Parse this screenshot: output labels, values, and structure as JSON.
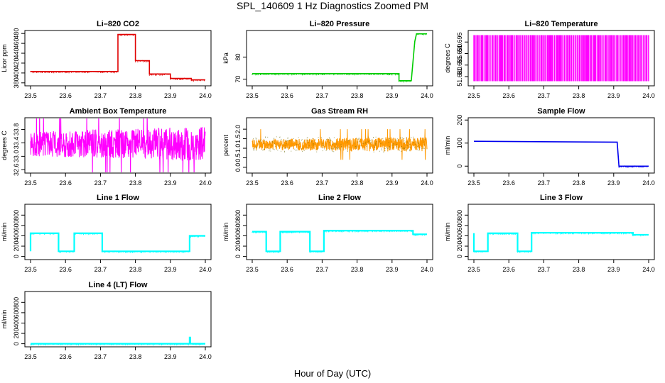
{
  "figure": {
    "title": "SPL_140609  1 Hz Diagnostics Zoomed PM",
    "xlabel": "Hour of Day (UTC)"
  },
  "chart_data": [
    {
      "type": "line",
      "title": "Li–820 CO2",
      "ylabel": "Licor ppm",
      "color": "#e00000",
      "xlim": [
        23.5,
        24.0
      ],
      "ylim": [
        374,
        486
      ],
      "xticks": [
        "23.5",
        "23.6",
        "23.7",
        "23.8",
        "23.9",
        "24.0"
      ],
      "yticks": [
        "380",
        "400",
        "420",
        "440",
        "460",
        "480"
      ],
      "x": [
        23.5,
        23.75,
        23.75,
        23.8,
        23.8,
        23.84,
        23.84,
        23.9,
        23.9,
        23.96,
        23.96,
        24.0
      ],
      "y": [
        403,
        403,
        478,
        478,
        425,
        425,
        398,
        398,
        389,
        389,
        386,
        386
      ]
    },
    {
      "type": "line",
      "title": "Li–820 Pressure",
      "ylabel": "kPa",
      "color": "#00cc00",
      "xlim": [
        23.5,
        24.0
      ],
      "ylim": [
        67,
        92
      ],
      "xticks": [
        "23.5",
        "23.6",
        "23.7",
        "23.8",
        "23.9",
        "24.0"
      ],
      "yticks": [
        "70",
        "80"
      ],
      "x": [
        23.5,
        23.92,
        23.92,
        23.955,
        23.965,
        23.97,
        24.0
      ],
      "y": [
        72.5,
        72.5,
        69.3,
        69.3,
        87,
        90.5,
        90.5
      ]
    },
    {
      "type": "line",
      "title": "Li–820 Temperature",
      "ylabel": "degrees C",
      "color": "#ff00ff",
      "xlim": [
        23.5,
        24.0
      ],
      "ylim": [
        51.676,
        51.7
      ],
      "xticks": [
        "23.5",
        "23.6",
        "23.7",
        "23.8",
        "23.9",
        "24.0"
      ],
      "yticks": [
        "51.680",
        "51.685",
        "51.690",
        "51.695"
      ],
      "x": [
        23.5,
        24.0
      ],
      "y": [
        51.678,
        51.698
      ]
    },
    {
      "type": "line",
      "title": "Ambient Box Temperature",
      "ylabel": "degrees C",
      "color": "#ff00ff",
      "xlim": [
        23.5,
        24.0
      ],
      "ylim": [
        32.5,
        34.15
      ],
      "xticks": [
        "23.5",
        "23.6",
        "23.7",
        "23.8",
        "23.9",
        "24.0"
      ],
      "yticks": [
        "32.6",
        "33.0",
        "33.4",
        "33.8"
      ],
      "x": [
        23.5,
        24.0
      ],
      "y": [
        32.85,
        33.9
      ]
    },
    {
      "type": "line",
      "title": "Gas Stream RH",
      "ylabel": "percent",
      "color": "#ff9900",
      "xlim": [
        23.5,
        24.0
      ],
      "ylim": [
        -0.3,
        2.6
      ],
      "xticks": [
        "23.5",
        "23.6",
        "23.7",
        "23.8",
        "23.9",
        "24.0"
      ],
      "yticks": [
        "0.0",
        "0.5",
        "1.0",
        "1.5",
        "2.0"
      ],
      "x": [
        23.5,
        24.0
      ],
      "y": [
        0.8,
        1.6
      ]
    },
    {
      "type": "line",
      "title": "Sample Flow",
      "ylabel": "ml/min",
      "color": "#0000ee",
      "xlim": [
        23.5,
        24.0
      ],
      "ylim": [
        -30,
        210
      ],
      "xticks": [
        "23.5",
        "23.6",
        "23.7",
        "23.8",
        "23.9",
        "24.0"
      ],
      "yticks": [
        "0",
        "100",
        "200"
      ],
      "x": [
        23.5,
        23.91,
        23.915,
        24.0
      ],
      "y": [
        108,
        104,
        0,
        0
      ]
    },
    {
      "type": "line",
      "title": "Line 1 Flow",
      "ylabel": "ml/min",
      "color": "#00ffff",
      "xlim": [
        23.5,
        24.0
      ],
      "ylim": [
        -60,
        1010
      ],
      "xticks": [
        "23.5",
        "23.6",
        "23.7",
        "23.8",
        "23.9",
        "24.0"
      ],
      "yticks": [
        "0",
        "200",
        "400",
        "600",
        "800"
      ],
      "x": [
        23.5,
        23.5,
        23.58,
        23.58,
        23.625,
        23.625,
        23.705,
        23.705,
        23.955,
        23.955,
        24.0
      ],
      "y": [
        100,
        450,
        450,
        100,
        100,
        450,
        450,
        100,
        100,
        400,
        400
      ]
    },
    {
      "type": "line",
      "title": "Line 2 Flow",
      "ylabel": "ml/min",
      "color": "#00ffff",
      "xlim": [
        23.5,
        24.0
      ],
      "ylim": [
        -60,
        1010
      ],
      "xticks": [
        "23.5",
        "23.6",
        "23.7",
        "23.8",
        "23.9",
        "24.0"
      ],
      "yticks": [
        "0",
        "200",
        "400",
        "600",
        "800"
      ],
      "x": [
        23.5,
        23.54,
        23.54,
        23.58,
        23.58,
        23.665,
        23.665,
        23.705,
        23.705,
        23.96,
        23.96,
        24.0
      ],
      "y": [
        480,
        480,
        100,
        100,
        480,
        480,
        100,
        100,
        500,
        500,
        430,
        430
      ]
    },
    {
      "type": "line",
      "title": "Line 3 Flow",
      "ylabel": "ml/min",
      "color": "#00ffff",
      "xlim": [
        23.5,
        24.0
      ],
      "ylim": [
        -60,
        1010
      ],
      "xticks": [
        "23.5",
        "23.6",
        "23.7",
        "23.8",
        "23.9",
        "24.0"
      ],
      "yticks": [
        "0",
        "200",
        "400",
        "600",
        "800"
      ],
      "x": [
        23.5,
        23.5,
        23.54,
        23.54,
        23.625,
        23.625,
        23.665,
        23.665,
        23.955,
        23.955,
        24.0
      ],
      "y": [
        450,
        100,
        100,
        450,
        450,
        100,
        100,
        460,
        460,
        420,
        420
      ]
    },
    {
      "type": "line",
      "title": "Line 4 (LT) Flow",
      "ylabel": "ml/min",
      "color": "#00ffff",
      "xlim": [
        23.5,
        24.0
      ],
      "ylim": [
        -60,
        1010
      ],
      "xticks": [
        "23.5",
        "23.6",
        "23.7",
        "23.8",
        "23.9",
        "24.0"
      ],
      "yticks": [
        "0",
        "200",
        "400",
        "600",
        "800"
      ],
      "x": [
        23.5,
        23.955,
        23.955,
        23.957,
        23.957,
        24.0
      ],
      "y": [
        0,
        0,
        120,
        120,
        0,
        0
      ]
    }
  ]
}
